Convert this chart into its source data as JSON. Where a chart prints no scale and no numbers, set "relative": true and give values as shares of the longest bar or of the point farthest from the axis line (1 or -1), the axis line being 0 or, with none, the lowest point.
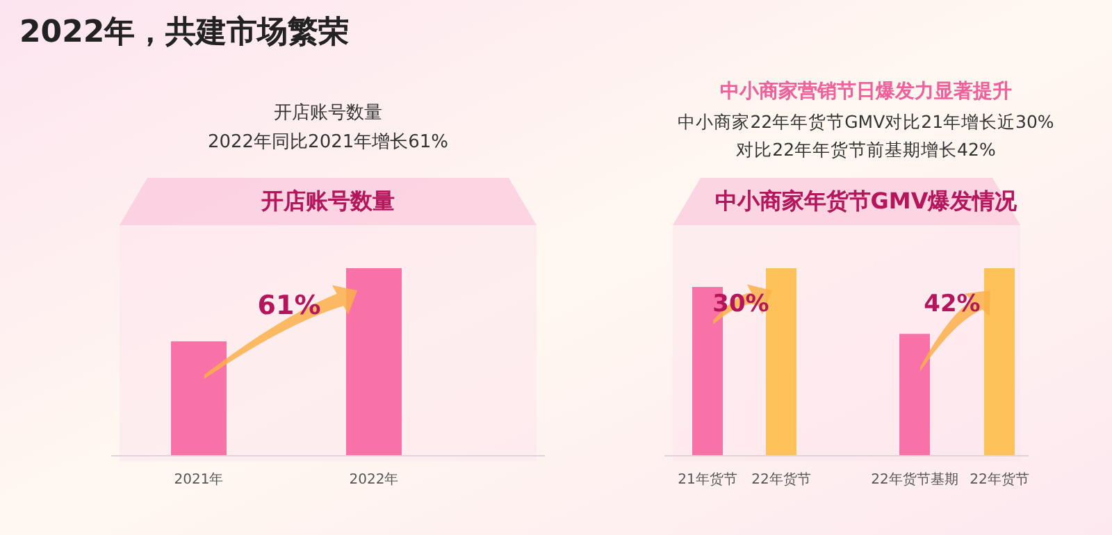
{
  "chart_data": [
    {
      "type": "bar",
      "title": "开店账号数量",
      "subtitle": "开店账号数量",
      "categories": [
        "2021年",
        "2022年"
      ],
      "values": [
        0.61,
        1
      ],
      "colors": [
        "#f872a8",
        "#f872a8"
      ],
      "relative": true,
      "annotations": [
        "2022年，共建市场繁荣",
        "2022年同比2021年增长61%",
        "61%"
      ]
    },
    {
      "type": "bar",
      "title": "中小商家年货节GMV爆发情况",
      "categories": [
        "21年货节",
        "22年货节",
        "22年货节基期",
        "22年货节"
      ],
      "values": [
        0.9,
        1,
        0.65,
        1
      ],
      "colors": [
        "#f872a8",
        "#fdc25a",
        "#f872a8",
        "#fdc25a"
      ],
      "relative": true,
      "annotations": [
        "中小商家营销节日爆发力显著提升",
        "中小商家22年年货节GMV对比21年增长近30%",
        "对比22年年货节前基期增长42%",
        "30%",
        "42%"
      ]
    }
  ]
}
